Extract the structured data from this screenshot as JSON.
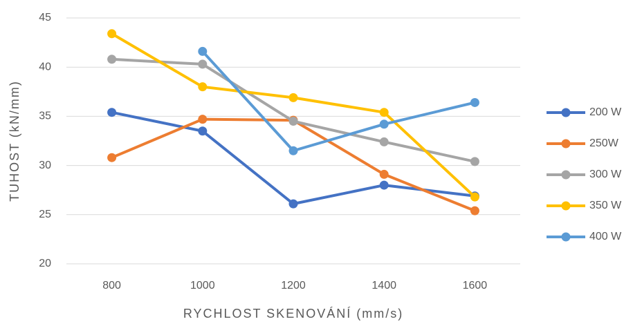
{
  "chart_data": {
    "type": "line",
    "y_label": "TUHOST (kN/mm)",
    "x_label": "RYCHLOST SKENOVÁNÍ (mm/s)",
    "categories": [
      "800",
      "1000",
      "1200",
      "1400",
      "1600"
    ],
    "series": [
      {
        "name": "200 W",
        "color": "#4472c4",
        "values": [
          35.4,
          33.5,
          26.1,
          28.0,
          26.9
        ]
      },
      {
        "name": "250W",
        "color": "#ed7d31",
        "values": [
          30.8,
          34.7,
          34.6,
          29.1,
          25.4
        ]
      },
      {
        "name": "300 W",
        "color": "#a5a5a5",
        "values": [
          40.8,
          40.3,
          34.5,
          32.4,
          30.4
        ]
      },
      {
        "name": "350 W",
        "color": "#ffc000",
        "values": [
          43.4,
          38.0,
          36.9,
          35.4,
          26.8
        ]
      },
      {
        "name": "400 W",
        "color": "#5b9bd5",
        "values": [
          null,
          41.6,
          31.5,
          34.2,
          36.4
        ]
      }
    ],
    "ylim": [
      20,
      45
    ],
    "yticks": [
      20,
      25,
      30,
      35,
      40,
      45
    ],
    "grid": true,
    "legend": "right"
  }
}
